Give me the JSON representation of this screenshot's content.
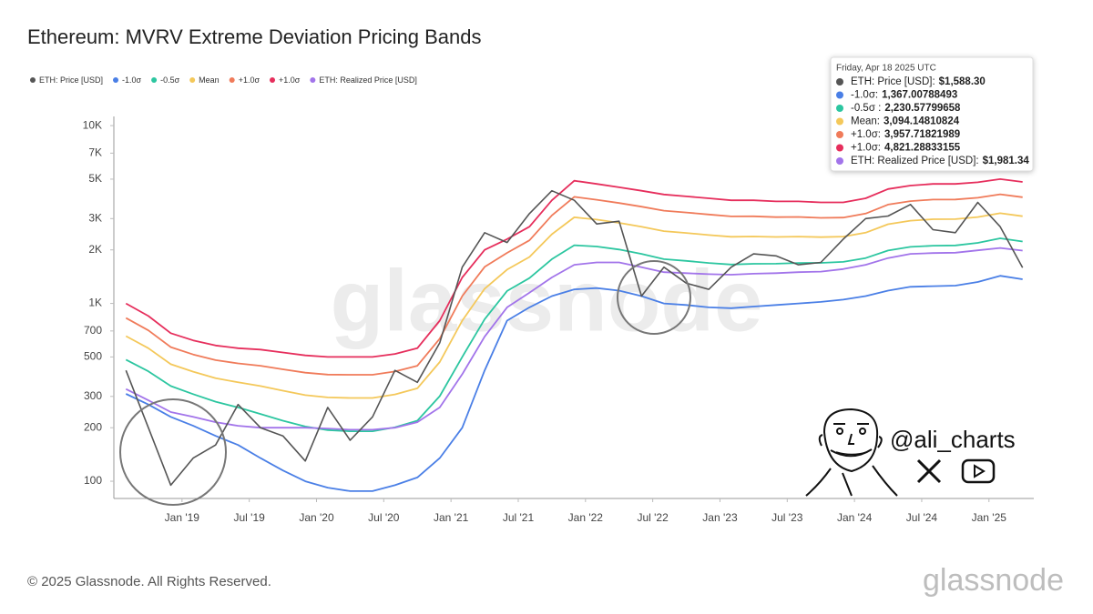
{
  "chart_data": {
    "type": "line",
    "title": "Ethereum: MVRV Extreme Deviation Pricing Bands",
    "log_y": true,
    "grid": false,
    "legend": "top-left",
    "x": [
      "2018-08",
      "2018-10",
      "2018-12",
      "2019-02",
      "2019-04",
      "2019-06",
      "2019-08",
      "2019-10",
      "2019-12",
      "2020-02",
      "2020-04",
      "2020-06",
      "2020-08",
      "2020-10",
      "2020-12",
      "2021-02",
      "2021-04",
      "2021-06",
      "2021-08",
      "2021-10",
      "2021-12",
      "2022-02",
      "2022-04",
      "2022-06",
      "2022-08",
      "2022-10",
      "2022-12",
      "2023-02",
      "2023-04",
      "2023-06",
      "2023-08",
      "2023-10",
      "2023-12",
      "2024-02",
      "2024-04",
      "2024-06",
      "2024-08",
      "2024-10",
      "2024-12",
      "2025-02",
      "2025-04"
    ],
    "xlim": [
      "2018-07",
      "2025-05"
    ],
    "xticks": [
      {
        "value": "2019-01",
        "label": "Jan '19"
      },
      {
        "value": "2019-07",
        "label": "Jul '19"
      },
      {
        "value": "2020-01",
        "label": "Jan '20"
      },
      {
        "value": "2020-07",
        "label": "Jul '20"
      },
      {
        "value": "2021-01",
        "label": "Jan '21"
      },
      {
        "value": "2021-07",
        "label": "Jul '21"
      },
      {
        "value": "2022-01",
        "label": "Jan '22"
      },
      {
        "value": "2022-07",
        "label": "Jul '22"
      },
      {
        "value": "2023-01",
        "label": "Jan '23"
      },
      {
        "value": "2023-07",
        "label": "Jul '23"
      },
      {
        "value": "2024-01",
        "label": "Jan '24"
      },
      {
        "value": "2024-07",
        "label": "Jul '24"
      },
      {
        "value": "2025-01",
        "label": "Jan '25"
      }
    ],
    "ylim": [
      80,
      11000
    ],
    "yticks": [
      100,
      200,
      300,
      500,
      700,
      {
        "value": 1000,
        "label": "1K"
      },
      {
        "value": 2000,
        "label": "2K"
      },
      {
        "value": 3000,
        "label": "3K"
      },
      {
        "value": 5000,
        "label": "5K"
      },
      {
        "value": 7000,
        "label": "7K"
      },
      {
        "value": 10000,
        "label": "10K"
      }
    ],
    "series": [
      {
        "name": "ETH: Price [USD]",
        "color": "#555555",
        "values": [
          420,
          200,
          95,
          135,
          160,
          270,
          200,
          180,
          130,
          260,
          170,
          230,
          420,
          360,
          600,
          1600,
          2500,
          2200,
          3200,
          4300,
          3800,
          2800,
          2900,
          1100,
          1600,
          1300,
          1200,
          1600,
          1900,
          1850,
          1650,
          1700,
          2300,
          3000,
          3100,
          3600,
          2600,
          2500,
          3700,
          2700,
          1588.3
        ],
        "value_labels": [
          null,
          null,
          null,
          null,
          null,
          null,
          null,
          null,
          null,
          null,
          null,
          null,
          null,
          null,
          null,
          null,
          null,
          null,
          null,
          null,
          null,
          null,
          null,
          null,
          null,
          null,
          null,
          null,
          null,
          null,
          null,
          null,
          null,
          null,
          null,
          null,
          null,
          null,
          null,
          null,
          "$1,588.30"
        ]
      },
      {
        "name": "-1.0σ",
        "color": "#4a7fe6",
        "values": [
          310,
          270,
          230,
          205,
          180,
          160,
          135,
          115,
          100,
          92,
          88,
          88,
          95,
          105,
          135,
          200,
          420,
          800,
          950,
          1100,
          1200,
          1220,
          1180,
          1100,
          1000,
          980,
          950,
          940,
          960,
          980,
          1000,
          1020,
          1050,
          1100,
          1180,
          1240,
          1250,
          1260,
          1320,
          1430,
          1367.00788493
        ],
        "value_labels": [
          null,
          null,
          null,
          null,
          null,
          null,
          null,
          null,
          null,
          null,
          null,
          null,
          null,
          null,
          null,
          null,
          null,
          null,
          null,
          null,
          null,
          null,
          null,
          null,
          null,
          null,
          null,
          null,
          null,
          null,
          null,
          null,
          null,
          null,
          null,
          null,
          null,
          null,
          null,
          null,
          "1,367.00788493"
        ]
      },
      {
        "name": "-0.5σ",
        "color": "#2cc6a0",
        "values": [
          483,
          415,
          343,
          309,
          280,
          260,
          239,
          219,
          203,
          194,
          191,
          191,
          201,
          219,
          301,
          500,
          815,
          1175,
          1388,
          1775,
          2125,
          2090,
          2010,
          1900,
          1775,
          1735,
          1688,
          1655,
          1670,
          1673,
          1688,
          1690,
          1713,
          1800,
          1985,
          2080,
          2113,
          2120,
          2190,
          2323,
          2230.57799658
        ],
        "value_labels": [
          null,
          null,
          null,
          null,
          null,
          null,
          null,
          null,
          null,
          null,
          null,
          null,
          null,
          null,
          null,
          null,
          null,
          null,
          null,
          null,
          null,
          null,
          null,
          null,
          null,
          null,
          null,
          null,
          null,
          null,
          null,
          null,
          null,
          null,
          null,
          null,
          null,
          null,
          null,
          null,
          "2,230.57799658"
        ]
      },
      {
        "name": "Mean",
        "color": "#f4c85a",
        "values": [
          655,
          560,
          455,
          413,
          380,
          360,
          343,
          323,
          305,
          296,
          294,
          294,
          308,
          333,
          468,
          800,
          1210,
          1550,
          1825,
          2450,
          3050,
          2960,
          2840,
          2700,
          2550,
          2490,
          2425,
          2370,
          2380,
          2365,
          2375,
          2360,
          2375,
          2500,
          2790,
          2920,
          2975,
          2980,
          3060,
          3215,
          3094.14810824
        ],
        "value_labels": [
          null,
          null,
          null,
          null,
          null,
          null,
          null,
          null,
          null,
          null,
          null,
          null,
          null,
          null,
          null,
          null,
          null,
          null,
          null,
          null,
          null,
          null,
          null,
          null,
          null,
          null,
          null,
          null,
          null,
          null,
          null,
          null,
          null,
          null,
          null,
          null,
          null,
          null,
          null,
          null,
          "3,094.14810824"
        ]
      },
      {
        "name": "+1.0σ",
        "color": "#f07b5a",
        "values": [
          828,
          705,
          568,
          516,
          480,
          460,
          446,
          426,
          408,
          398,
          397,
          397,
          414,
          446,
          634,
          1100,
          1605,
          1925,
          2263,
          3125,
          3975,
          3830,
          3670,
          3500,
          3325,
          3245,
          3163,
          3085,
          3090,
          3058,
          3063,
          3030,
          3038,
          3200,
          3595,
          3760,
          3838,
          3840,
          3930,
          4108,
          3957.71821989
        ],
        "value_labels": [
          null,
          null,
          null,
          null,
          null,
          null,
          null,
          null,
          null,
          null,
          null,
          null,
          null,
          null,
          null,
          null,
          null,
          null,
          null,
          null,
          null,
          null,
          null,
          null,
          null,
          null,
          null,
          null,
          null,
          null,
          null,
          null,
          null,
          null,
          null,
          null,
          null,
          null,
          null,
          null,
          "3,957.71821989"
        ]
      },
      {
        "name": "+1.0σ",
        "color": "#e62e5c",
        "values": [
          1000,
          850,
          680,
          620,
          580,
          560,
          550,
          530,
          510,
          500,
          500,
          500,
          520,
          560,
          800,
          1400,
          2000,
          2300,
          2700,
          3800,
          4900,
          4700,
          4500,
          4300,
          4100,
          4000,
          3900,
          3800,
          3800,
          3750,
          3750,
          3700,
          3700,
          3900,
          4400,
          4600,
          4700,
          4700,
          4800,
          5000,
          4821.28833155
        ],
        "value_labels": [
          null,
          null,
          null,
          null,
          null,
          null,
          null,
          null,
          null,
          null,
          null,
          null,
          null,
          null,
          null,
          null,
          null,
          null,
          null,
          null,
          null,
          null,
          null,
          null,
          null,
          null,
          null,
          null,
          null,
          null,
          null,
          null,
          null,
          null,
          null,
          null,
          null,
          null,
          null,
          null,
          "4,821.28833155"
        ]
      },
      {
        "name": "ETH: Realized Price [USD]",
        "color": "#a274ea",
        "values": [
          330,
          285,
          245,
          230,
          215,
          205,
          200,
          200,
          200,
          198,
          195,
          195,
          200,
          215,
          260,
          400,
          650,
          950,
          1150,
          1400,
          1650,
          1700,
          1700,
          1600,
          1500,
          1480,
          1460,
          1450,
          1470,
          1480,
          1500,
          1510,
          1560,
          1650,
          1800,
          1900,
          1920,
          1930,
          1990,
          2050,
          1981.34
        ],
        "value_labels": [
          null,
          null,
          null,
          null,
          null,
          null,
          null,
          null,
          null,
          null,
          null,
          null,
          null,
          null,
          null,
          null,
          null,
          null,
          null,
          null,
          null,
          null,
          null,
          null,
          null,
          null,
          null,
          null,
          null,
          null,
          null,
          null,
          null,
          null,
          null,
          null,
          null,
          null,
          null,
          null,
          "$1,981.34"
        ]
      }
    ],
    "tooltip": {
      "title": "Friday, Apr 18 2025 UTC",
      "labels": [
        "ETH: Price [USD]:",
        "-1.0σ:",
        "-0.5σ :",
        "Mean:",
        "+1.0σ:",
        "+1.0σ:",
        "ETH: Realized Price [USD]:"
      ]
    },
    "watermark": "glassnode",
    "footer": "© 2025 Glassnode. All Rights Reserved.",
    "logo": "glassnode",
    "handle": "@ali_charts"
  }
}
